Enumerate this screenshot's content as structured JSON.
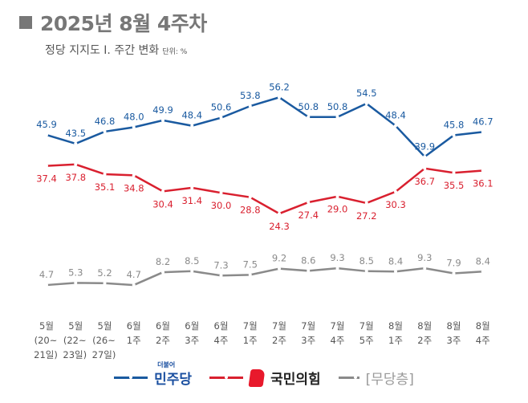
{
  "header": {
    "title": "2025년 8월 4주차",
    "subtitle": "정당 지지도 Ⅰ. 주간 변화",
    "unit": "단위: %"
  },
  "chart_data": {
    "type": "line",
    "title": "정당 지지도 Ⅰ. 주간 변화",
    "ylabel": "%",
    "categories": [
      [
        "5월",
        "(20~",
        "21일)"
      ],
      [
        "5월",
        "(22~",
        "23일)"
      ],
      [
        "5월",
        "(26~",
        "27일)"
      ],
      [
        "6월",
        "1주"
      ],
      [
        "6월",
        "2주"
      ],
      [
        "6월",
        "3주"
      ],
      [
        "6월",
        "4주"
      ],
      [
        "7월",
        "1주"
      ],
      [
        "7월",
        "2주"
      ],
      [
        "7월",
        "3주"
      ],
      [
        "7월",
        "4주"
      ],
      [
        "7월",
        "5주"
      ],
      [
        "8월",
        "1주"
      ],
      [
        "8월",
        "2주"
      ],
      [
        "8월",
        "3주"
      ],
      [
        "8월",
        "4주"
      ]
    ],
    "series": [
      {
        "name": "더불어민주당",
        "color": "#1a5aa0",
        "values": [
          45.9,
          43.5,
          46.8,
          48.0,
          49.9,
          48.4,
          50.6,
          53.8,
          56.2,
          50.8,
          50.8,
          54.5,
          48.4,
          39.9,
          45.8,
          46.7
        ]
      },
      {
        "name": "국민의힘",
        "color": "#d9202f",
        "values": [
          37.4,
          37.8,
          35.1,
          34.8,
          30.4,
          31.4,
          30.0,
          28.8,
          24.3,
          27.4,
          29.0,
          27.2,
          30.3,
          36.7,
          35.5,
          36.1
        ]
      },
      {
        "name": "[무당층]",
        "color": "#8a8a8a",
        "values": [
          4.7,
          5.3,
          5.2,
          4.7,
          8.2,
          8.5,
          7.3,
          7.5,
          9.2,
          8.6,
          9.3,
          8.5,
          8.4,
          9.3,
          7.9,
          8.4
        ]
      }
    ],
    "legend_position": "bottom",
    "grid": false
  },
  "legend": {
    "dem": "민주당",
    "dem_small": "더불어",
    "ppp": "국민의힘",
    "none": "[무당층]"
  }
}
